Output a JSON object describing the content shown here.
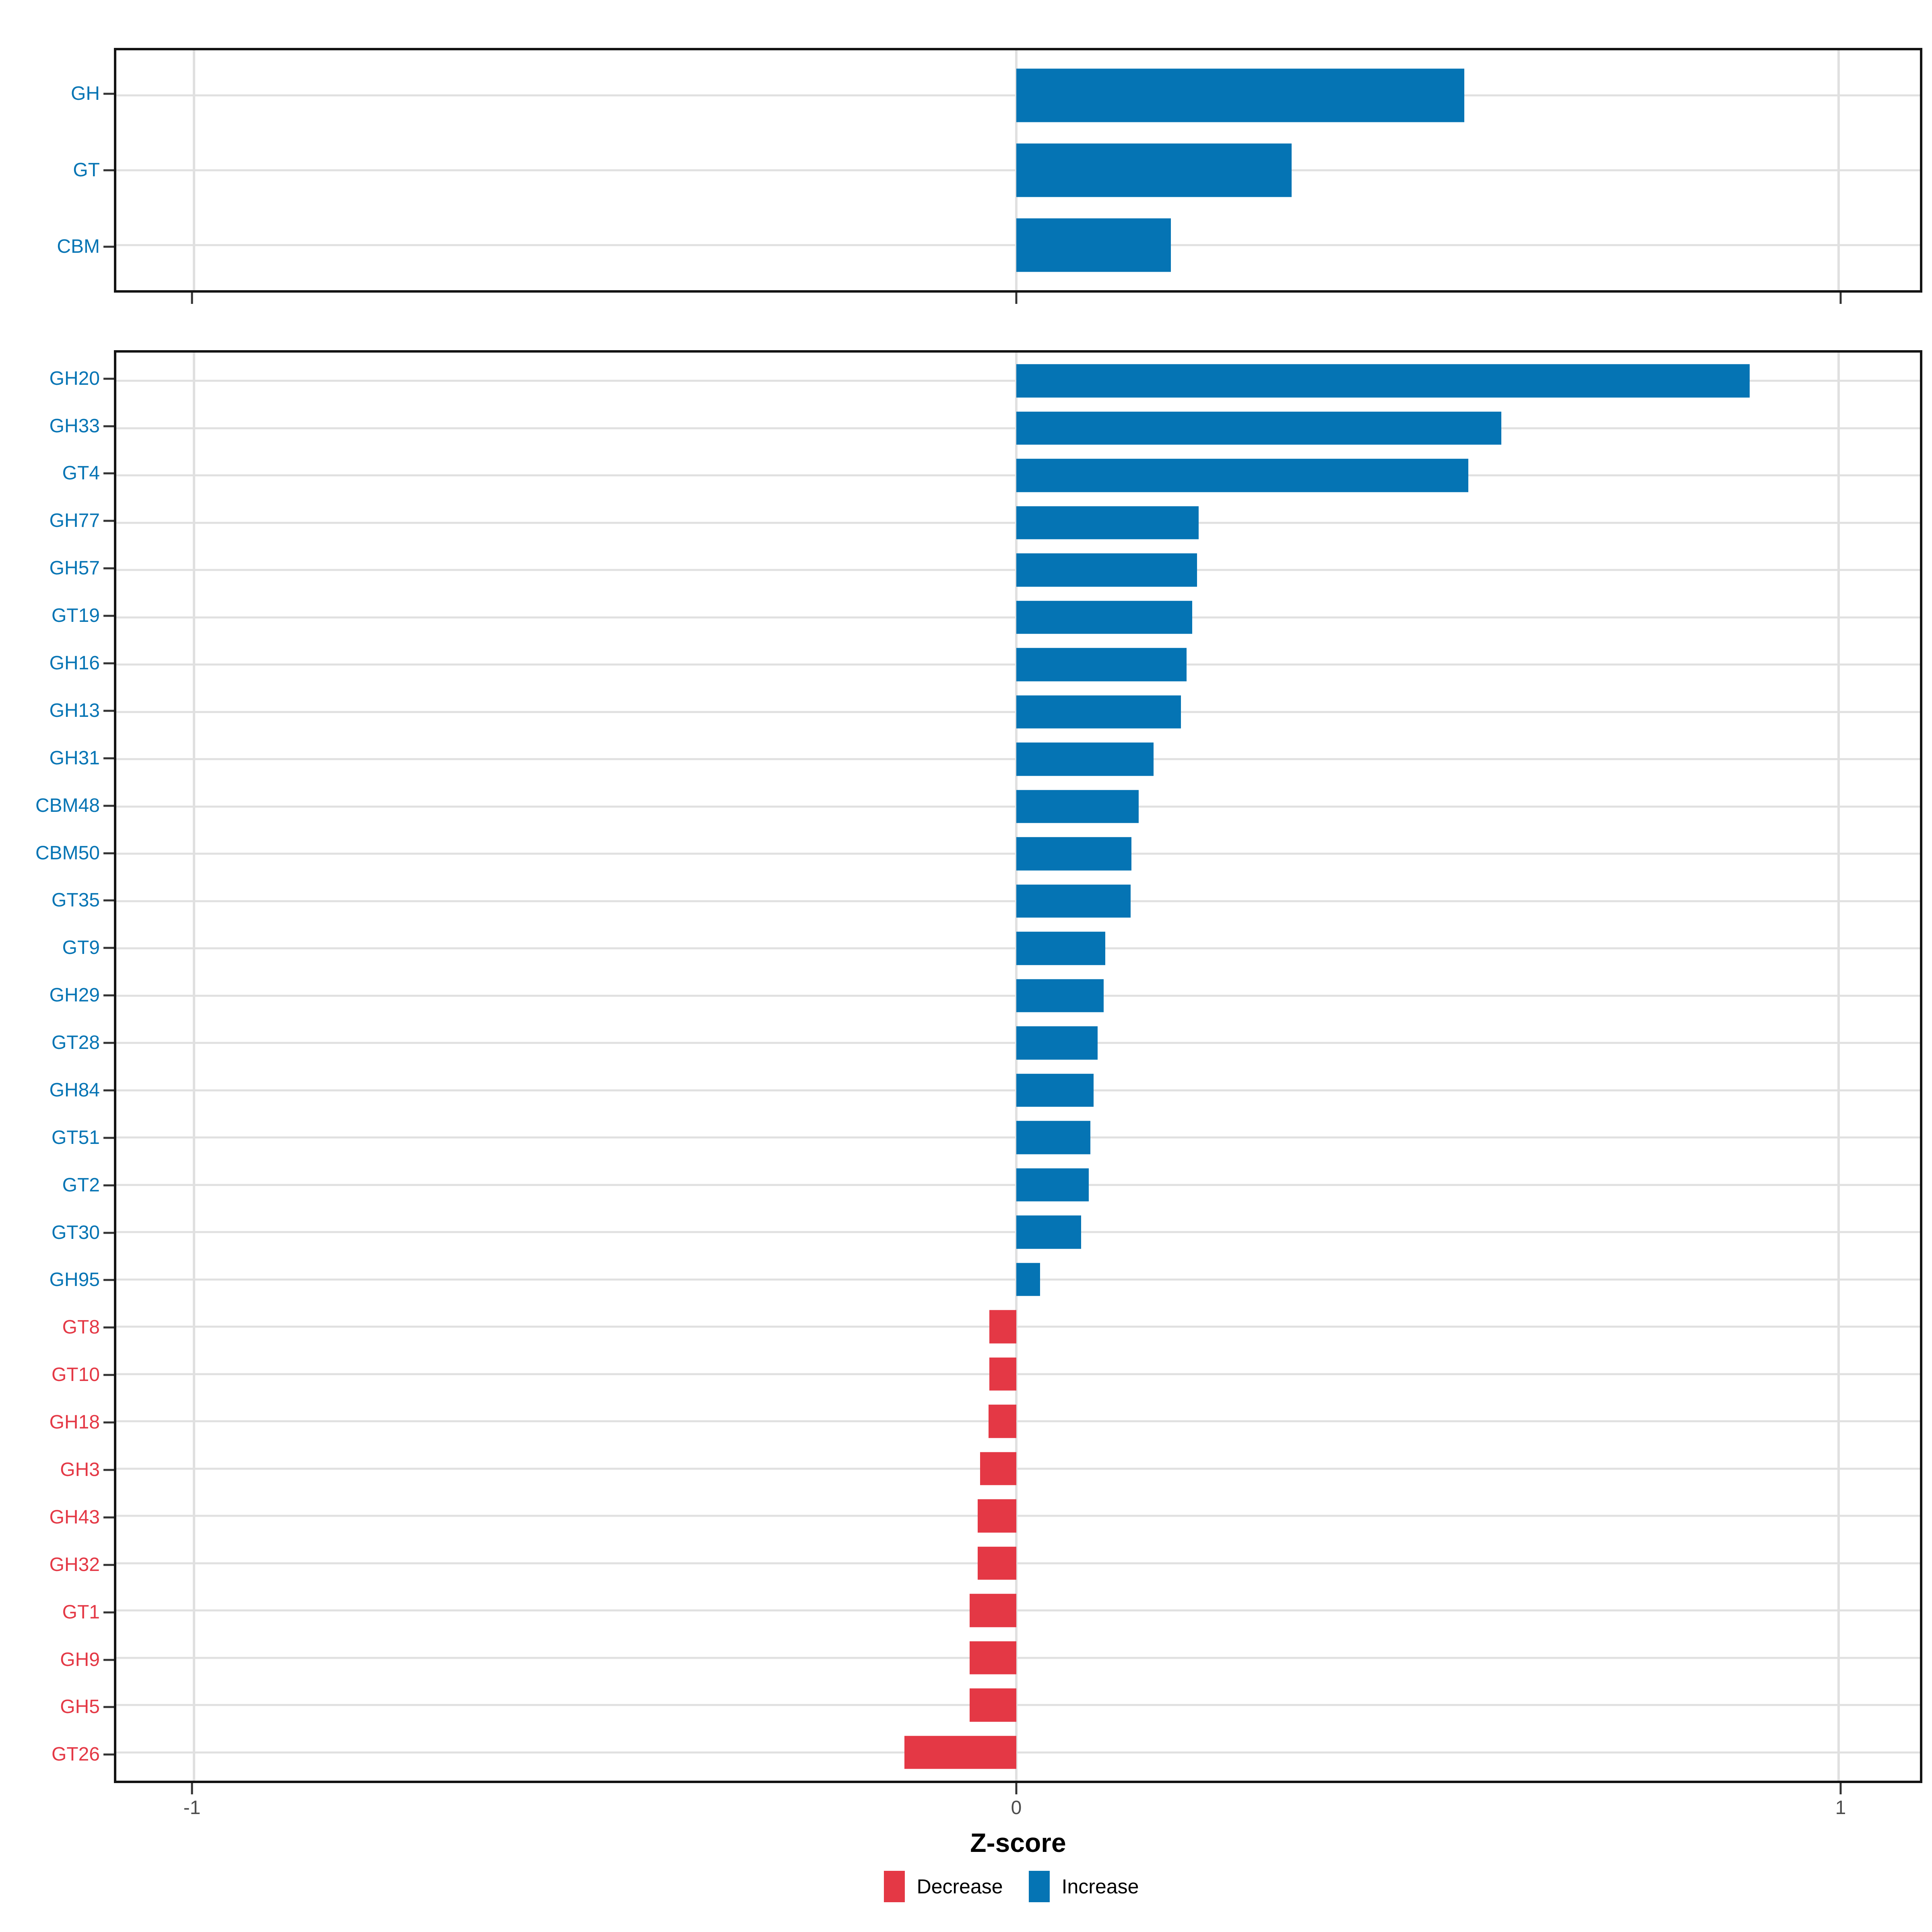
{
  "chart_data": {
    "type": "bar",
    "orientation": "horizontal",
    "title": "",
    "xlabel": "Z-score",
    "ylabel": "",
    "x_ticks": [
      -1,
      0,
      1
    ],
    "x_range": [
      -1.1,
      1.1
    ],
    "grid": "major gridlines only, light gray, white panel background, black panel border",
    "legend_position": "bottom center",
    "panels": [
      {
        "id": "enzyme-classes",
        "categories": [
          "GH",
          "GT",
          "CBM"
        ],
        "values": [
          0.545,
          0.335,
          0.188
        ]
      },
      {
        "id": "cazyme-families",
        "categories": [
          "GH20",
          "GH33",
          "GT4",
          "GH77",
          "GH57",
          "GT19",
          "GH16",
          "GH13",
          "GH31",
          "CBM48",
          "CBM50",
          "GT35",
          "GT9",
          "GH29",
          "GT28",
          "GH84",
          "GT51",
          "GT2",
          "GT30",
          "GH95",
          "GT8",
          "GT10",
          "GH18",
          "GH3",
          "GH43",
          "GH32",
          "GT1",
          "GH9",
          "GH5",
          "GT26"
        ],
        "values": [
          0.892,
          0.59,
          0.55,
          0.222,
          0.22,
          0.214,
          0.207,
          0.2,
          0.167,
          0.149,
          0.14,
          0.139,
          0.108,
          0.106,
          0.099,
          0.094,
          0.09,
          0.088,
          0.079,
          0.029,
          -0.033,
          -0.033,
          -0.034,
          -0.044,
          -0.047,
          -0.047,
          -0.057,
          -0.057,
          -0.057,
          -0.136
        ]
      }
    ],
    "legend": [
      {
        "label": "Decrease",
        "key": "decrease"
      },
      {
        "label": "Increase",
        "key": "increase"
      }
    ]
  },
  "colors": {
    "increase": "#0574B4",
    "decrease": "#E43845",
    "grid": "#E0E0E0",
    "axis_text": "#4D4D4D",
    "tick_mark": "#333333",
    "panel_border": "#141414"
  }
}
